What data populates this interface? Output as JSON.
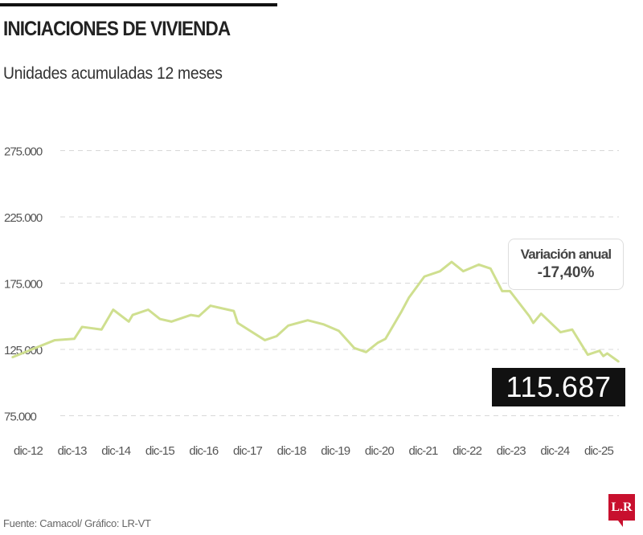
{
  "title": "INICIACIONES DE VIVIENDA",
  "subtitle": "Unidades acumuladas 12 meses",
  "footer": "Fuente: Camacol/ Gráfico: LR-VT",
  "logo_text": "LR",
  "colors": {
    "line": "#cfdf8f",
    "grid": "#d8d8d8",
    "highlight_box": "#111111",
    "logo": "#c8102e"
  },
  "annotation": {
    "label": "Variación anual",
    "value": "-17,40%"
  },
  "last_value_label": "115.687",
  "chart_data": {
    "type": "line",
    "title": "INICIACIONES DE VIVIENDA",
    "subtitle": "Unidades acumuladas 12 meses",
    "xlabel": "",
    "ylabel": "",
    "ylim": [
      75000,
      275000
    ],
    "yticks": [
      75000,
      125000,
      175000,
      225000,
      275000
    ],
    "ytick_labels": [
      "75.000",
      "125.000",
      "175.000",
      "225.000",
      "275.000"
    ],
    "xtick_labels": [
      "dic-12",
      "dic-13",
      "dic-14",
      "dic-15",
      "dic-16",
      "dic-17",
      "dic-18",
      "dic-19",
      "dic-20",
      "dic-21",
      "dic-22",
      "dic-23",
      "dic-24",
      "dic-25"
    ],
    "grid": "horizontal dashed",
    "legend": "none",
    "series": [
      {
        "points": [
          [
            "2012-12",
            119000
          ],
          [
            "2013-11",
            132000
          ],
          [
            "2014-04",
            133000
          ],
          [
            "2014-06",
            142000
          ],
          [
            "2014-11",
            140000
          ],
          [
            "2015-02",
            155000
          ],
          [
            "2015-06",
            146000
          ],
          [
            "2015-07",
            151000
          ],
          [
            "2015-11",
            155000
          ],
          [
            "2016-02",
            148000
          ],
          [
            "2016-05",
            146000
          ],
          [
            "2016-10",
            151000
          ],
          [
            "2016-12",
            150000
          ],
          [
            "2017-03",
            158000
          ],
          [
            "2017-06",
            156000
          ],
          [
            "2017-09",
            154000
          ],
          [
            "2017-10",
            145000
          ],
          [
            "2018-05",
            132000
          ],
          [
            "2018-08",
            135000
          ],
          [
            "2018-11",
            143000
          ],
          [
            "2019-04",
            147000
          ],
          [
            "2019-08",
            144000
          ],
          [
            "2019-12",
            139000
          ],
          [
            "2020-04",
            126000
          ],
          [
            "2020-07",
            123000
          ],
          [
            "2020-10",
            130000
          ],
          [
            "2020-12",
            133000
          ],
          [
            "2021-04",
            153000
          ],
          [
            "2021-06",
            164000
          ],
          [
            "2021-10",
            180000
          ],
          [
            "2022-02",
            184000
          ],
          [
            "2022-05",
            191000
          ],
          [
            "2022-08",
            184000
          ],
          [
            "2022-12",
            189000
          ],
          [
            "2023-03",
            186000
          ],
          [
            "2023-06",
            169000
          ],
          [
            "2023-08",
            169000
          ],
          [
            "2024-01",
            150000
          ],
          [
            "2024-02",
            145000
          ],
          [
            "2024-04",
            152000
          ],
          [
            "2024-09",
            138000
          ],
          [
            "2024-12",
            140000
          ],
          [
            "2025-04",
            121000
          ],
          [
            "2025-07",
            124000
          ],
          [
            "2025-08",
            120000
          ],
          [
            "2025-09",
            122000
          ],
          [
            "2025-12",
            115687
          ]
        ]
      }
    ]
  }
}
